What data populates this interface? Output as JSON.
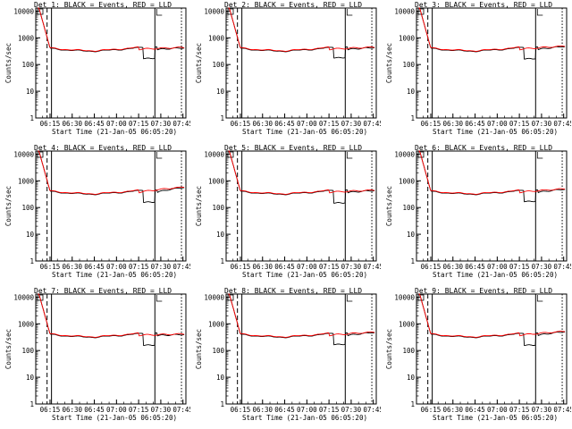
{
  "chart_data": {
    "type": "line",
    "layout": "3x3 grid",
    "x_ticks": [
      "06:15",
      "06:30",
      "06:45",
      "07:00",
      "07:15",
      "07:30",
      "07:45"
    ],
    "xlabel": "Start Time (21-Jan-05 06:05:20)",
    "ylabel": "Counts/sec",
    "y_ticks": [
      "1",
      "10",
      "100",
      "1000",
      "10000"
    ],
    "yscale": "log",
    "ylim": [
      1,
      13000
    ],
    "series_styles": [
      {
        "name": "Events",
        "color": "#000000"
      },
      {
        "name": "LLD",
        "color": "#ff0000"
      }
    ],
    "vlines": [
      {
        "time": "06:13",
        "style": "dashed"
      },
      {
        "time": "06:16",
        "style": "solid"
      },
      {
        "time": "07:26",
        "style": "solid"
      },
      {
        "time": "07:44",
        "style": "dotted"
      }
    ],
    "panels": [
      {
        "title": "Det 1: BLACK = Events, RED = LLD",
        "dip_level": 170,
        "tail_peak": 420
      },
      {
        "title": "Det 2: BLACK = Events, RED = LLD",
        "dip_level": 180,
        "tail_peak": 430
      },
      {
        "title": "Det 3: BLACK = Events, RED = LLD",
        "dip_level": 165,
        "tail_peak": 470
      },
      {
        "title": "Det 4: BLACK = Events, RED = LLD",
        "dip_level": 160,
        "tail_peak": 560
      },
      {
        "title": "Det 5: BLACK = Events, RED = LLD",
        "dip_level": 150,
        "tail_peak": 430
      },
      {
        "title": "Det 6: BLACK = Events, RED = LLD",
        "dip_level": 170,
        "tail_peak": 480
      },
      {
        "title": "Det 7: BLACK = Events, RED = LLD",
        "dip_level": 160,
        "tail_peak": 400
      },
      {
        "title": "Det 8: BLACK = Events, RED = LLD",
        "dip_level": 170,
        "tail_peak": 470
      },
      {
        "title": "Det 9: BLACK = Events, RED = LLD",
        "dip_level": 160,
        "tail_peak": 500
      }
    ]
  }
}
